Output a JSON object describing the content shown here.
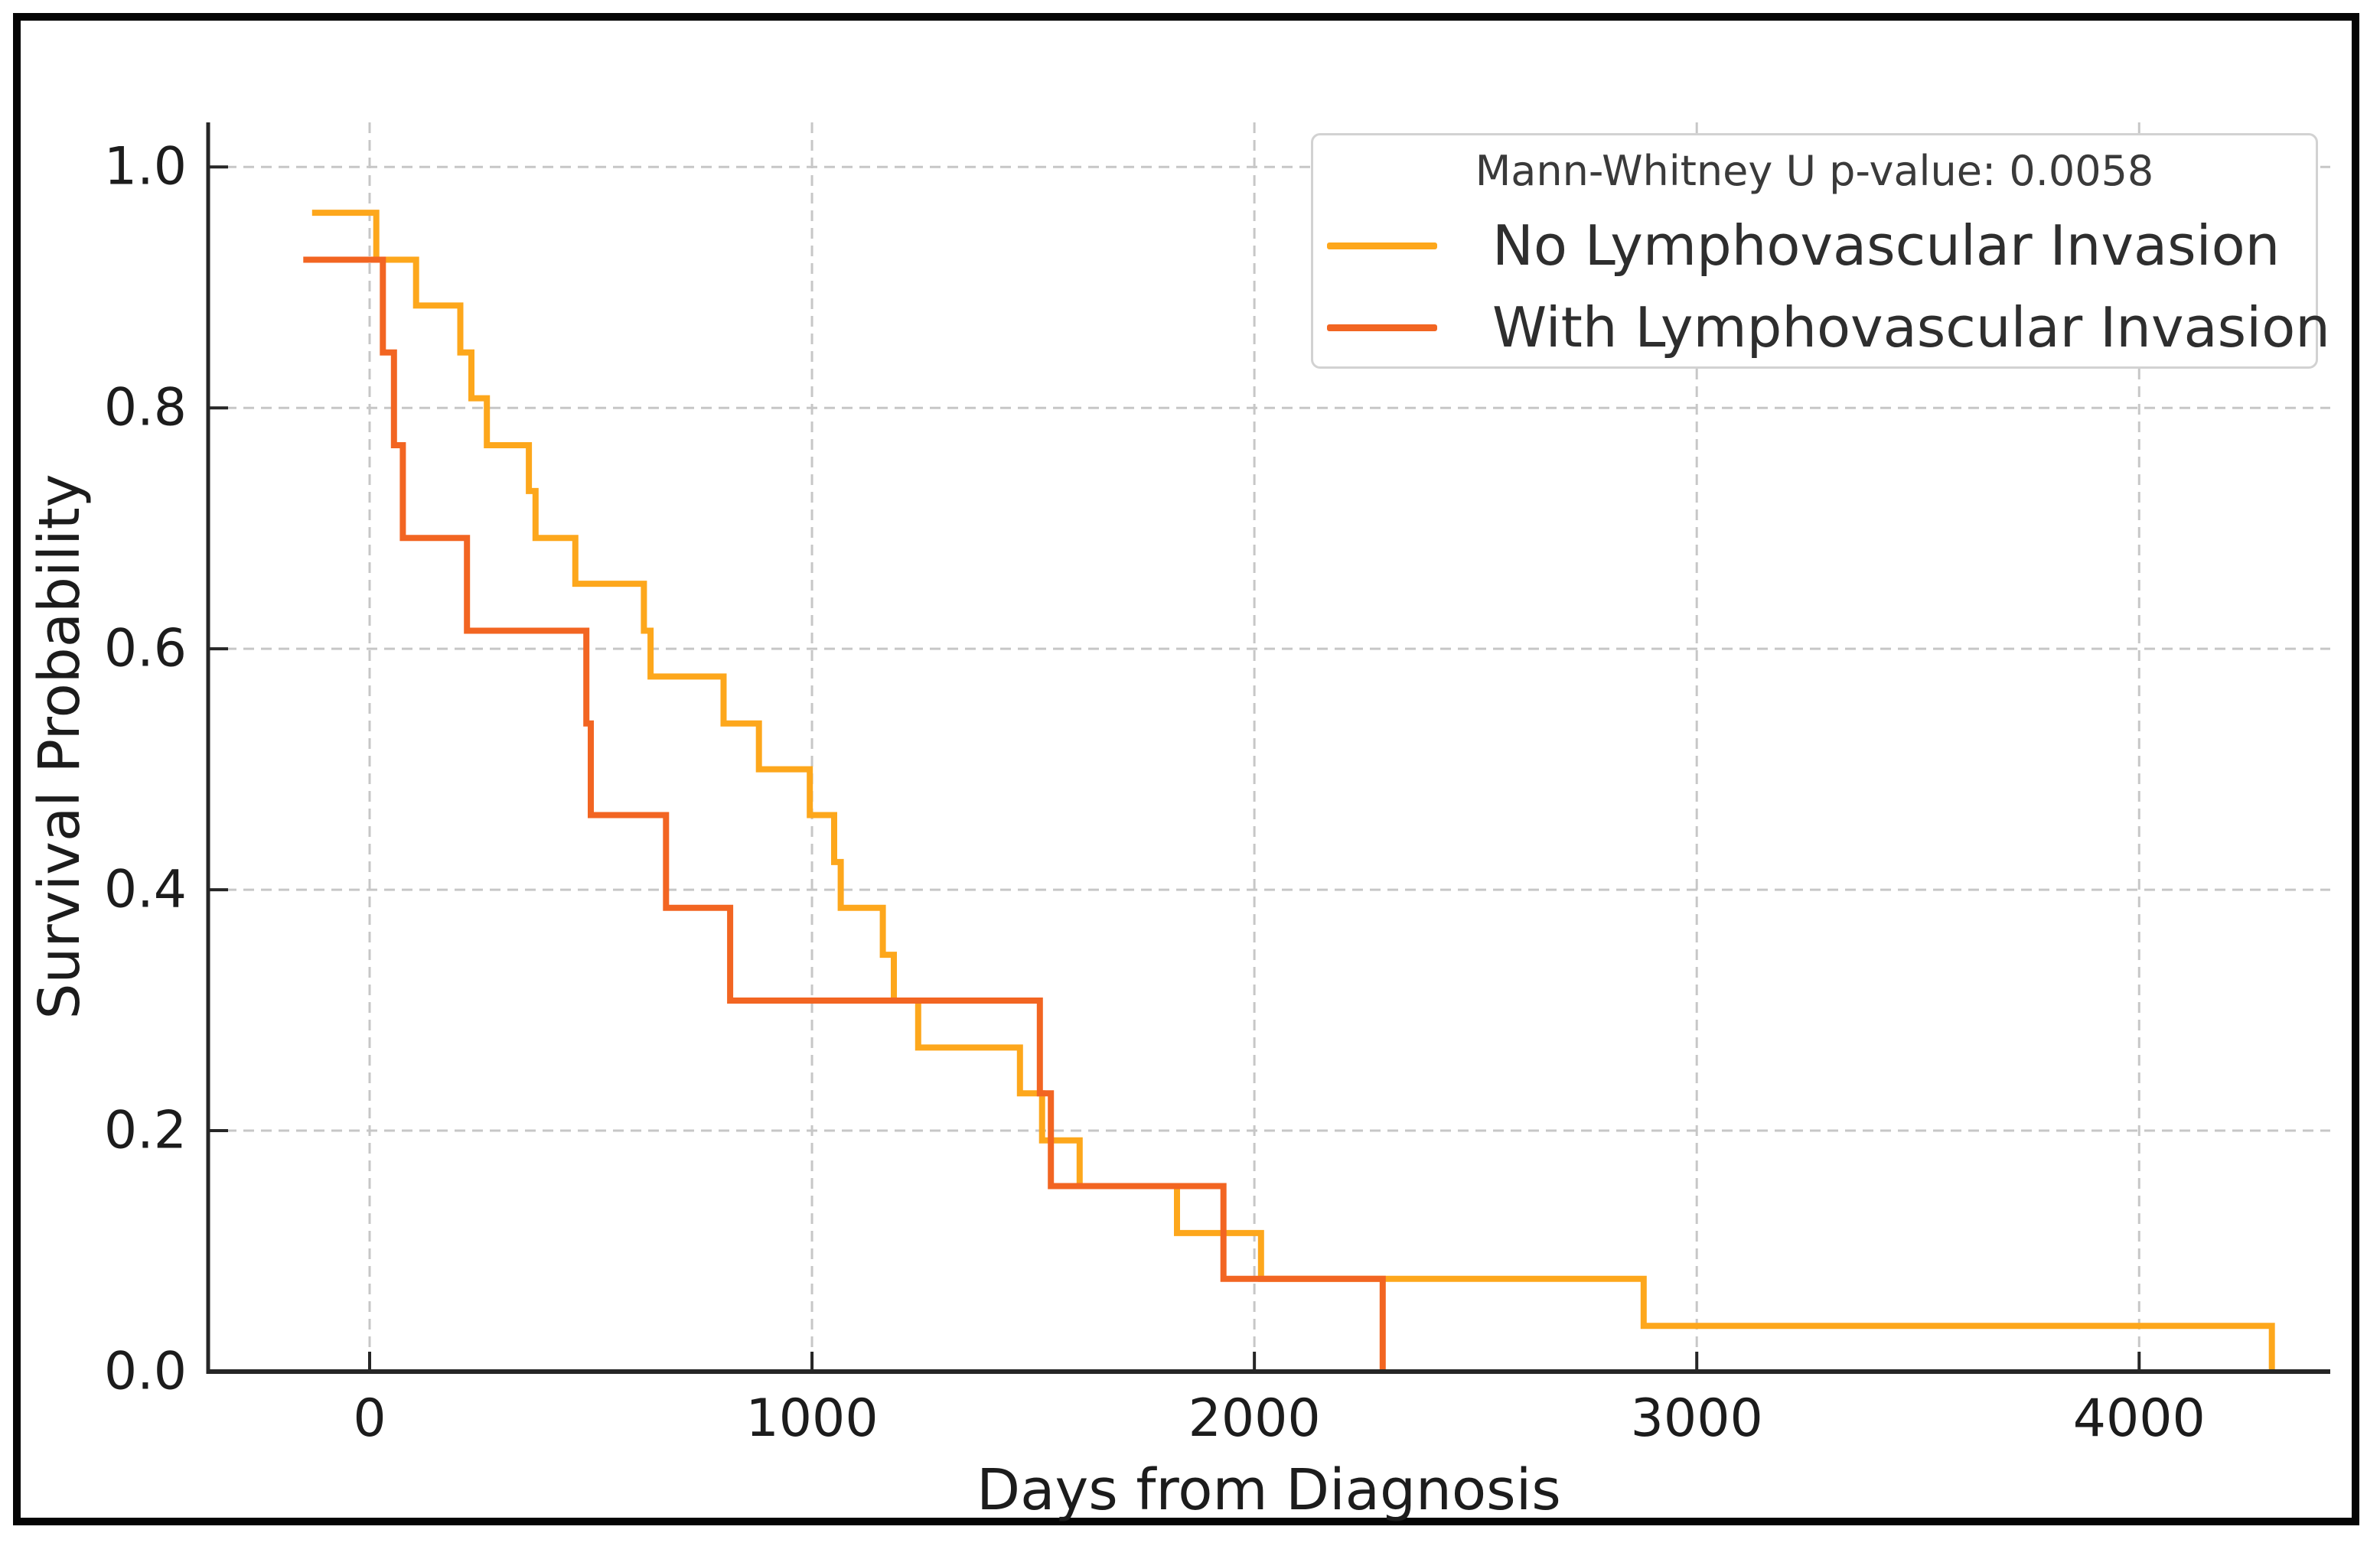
{
  "chart_data": {
    "type": "line",
    "subtype": "kaplan-meier-step",
    "title": "",
    "xlabel": "Days from Diagnosis",
    "ylabel": "Survival Probability",
    "annotation": "Mann-Whitney U p-value: 0.0058",
    "p_value": 0.0058,
    "grid": true,
    "legend_position": "upper right",
    "xlim": [
      -365,
      4432
    ],
    "ylim": [
      0,
      1.037
    ],
    "x_ticks": [
      0,
      1000,
      2000,
      3000,
      4000
    ],
    "x_tick_labels": [
      "0",
      "1000",
      "2000",
      "3000",
      "4000"
    ],
    "y_ticks": [
      0.0,
      0.2,
      0.4,
      0.6,
      0.8,
      1.0
    ],
    "y_tick_labels": [
      "0.0",
      "0.2",
      "0.4",
      "0.6",
      "0.8",
      "1.0"
    ],
    "grid_color": "#c7c7c7",
    "spine_color": "#262626",
    "series": [
      {
        "name": "No Lymphovascular Invasion",
        "color": "#FDA71C",
        "steps": [
          [
            -130,
            0.962
          ],
          [
            15,
            0.923
          ],
          [
            105,
            0.885
          ],
          [
            205,
            0.846
          ],
          [
            230,
            0.808
          ],
          [
            265,
            0.769
          ],
          [
            360,
            0.731
          ],
          [
            375,
            0.692
          ],
          [
            465,
            0.654
          ],
          [
            620,
            0.615
          ],
          [
            635,
            0.577
          ],
          [
            800,
            0.538
          ],
          [
            880,
            0.5
          ],
          [
            995,
            0.462
          ],
          [
            1050,
            0.423
          ],
          [
            1065,
            0.385
          ],
          [
            1160,
            0.346
          ],
          [
            1185,
            0.308
          ],
          [
            1240,
            0.269
          ],
          [
            1470,
            0.231
          ],
          [
            1520,
            0.192
          ],
          [
            1605,
            0.154
          ],
          [
            1825,
            0.115
          ],
          [
            2015,
            0.077
          ],
          [
            2880,
            0.038
          ],
          [
            4300,
            0.0
          ]
        ]
      },
      {
        "name": "With Lymphovascular Invasion",
        "color": "#F26522",
        "steps": [
          [
            -150,
            0.923
          ],
          [
            30,
            0.846
          ],
          [
            55,
            0.769
          ],
          [
            75,
            0.692
          ],
          [
            220,
            0.615
          ],
          [
            490,
            0.538
          ],
          [
            500,
            0.462
          ],
          [
            670,
            0.385
          ],
          [
            815,
            0.308
          ],
          [
            1515,
            0.231
          ],
          [
            1540,
            0.154
          ],
          [
            1930,
            0.077
          ],
          [
            2290,
            0.0
          ]
        ]
      }
    ]
  }
}
